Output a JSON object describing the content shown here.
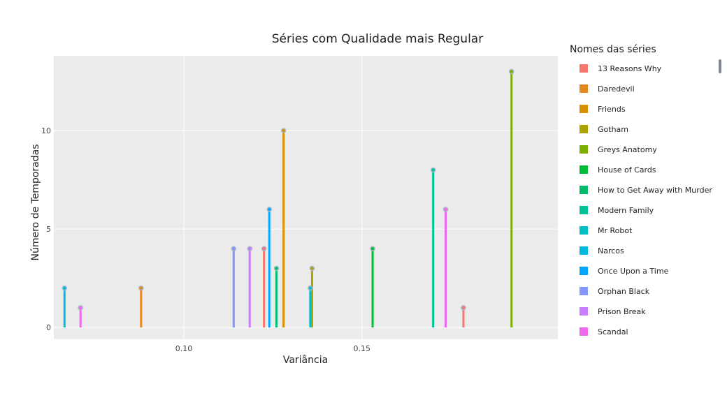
{
  "chart_data": {
    "type": "stem",
    "title": "Séries com Qualidade mais Regular",
    "xlabel": "Variância",
    "ylabel": "Número de Temporadas",
    "xlim": [
      0.0635,
      0.205
    ],
    "ylim": [
      -0.6,
      13.8
    ],
    "x_ticks": [
      0.1,
      0.15
    ],
    "x_tick_labels": [
      "0.10",
      "0.15"
    ],
    "y_ticks": [
      0,
      5,
      10
    ],
    "y_tick_labels": [
      "0",
      "5",
      "10"
    ],
    "grid": true,
    "legend": {
      "title": "Nomes das séries",
      "position": "right",
      "scrollable": true
    },
    "series": [
      {
        "name": "13 Reasons Why",
        "color": "#F8766D",
        "x": [
          0.1785
        ],
        "y": [
          1
        ]
      },
      {
        "name": "Daredevil",
        "color": "#E7861B",
        "x": [
          0.088
        ],
        "y": [
          2
        ]
      },
      {
        "name": "Friends",
        "color": "#D89000",
        "x": [
          0.128
        ],
        "y": [
          10
        ]
      },
      {
        "name": "Gotham",
        "color": "#AEA200",
        "x": [
          0.136
        ],
        "y": [
          3
        ]
      },
      {
        "name": "Greys Anatomy",
        "color": "#7CAE00",
        "x": [
          0.192
        ],
        "y": [
          13
        ]
      },
      {
        "name": "House of Cards",
        "color": "#00BA38",
        "x": [
          0.153
        ],
        "y": [
          4
        ]
      },
      {
        "name": "How to Get Away with Murder",
        "color": "#00BE67",
        "x": [
          0.126
        ],
        "y": [
          3
        ]
      },
      {
        "name": "Modern Family",
        "color": "#00C19A",
        "x": [
          0.17
        ],
        "y": [
          8
        ]
      },
      {
        "name": "Mr Robot",
        "color": "#00BFC4",
        "x": [
          0.1355
        ],
        "y": [
          2
        ]
      },
      {
        "name": "Narcos",
        "color": "#00B9E3",
        "x": [
          0.0665
        ],
        "y": [
          2
        ]
      },
      {
        "name": "Once Upon a Time",
        "color": "#00A9FF",
        "x": [
          0.124
        ],
        "y": [
          6
        ]
      },
      {
        "name": "Orphan Black",
        "color": "#8494FF",
        "x": [
          0.114
        ],
        "y": [
          4
        ]
      },
      {
        "name": "Prison Break",
        "color": "#C77CFF",
        "x": [
          0.1185
        ],
        "y": [
          4
        ]
      },
      {
        "name": "Scandal",
        "color": "#ED68ED",
        "x": [
          0.071
        ],
        "y": [
          1
        ]
      },
      {
        "name": "Scandal",
        "color": "#ED68ED",
        "x": [
          0.1735
        ],
        "y": [
          6
        ]
      },
      {
        "name": "13 Reasons Why",
        "color": "#F8766D",
        "x": [
          0.1225
        ],
        "y": [
          4
        ]
      }
    ]
  }
}
